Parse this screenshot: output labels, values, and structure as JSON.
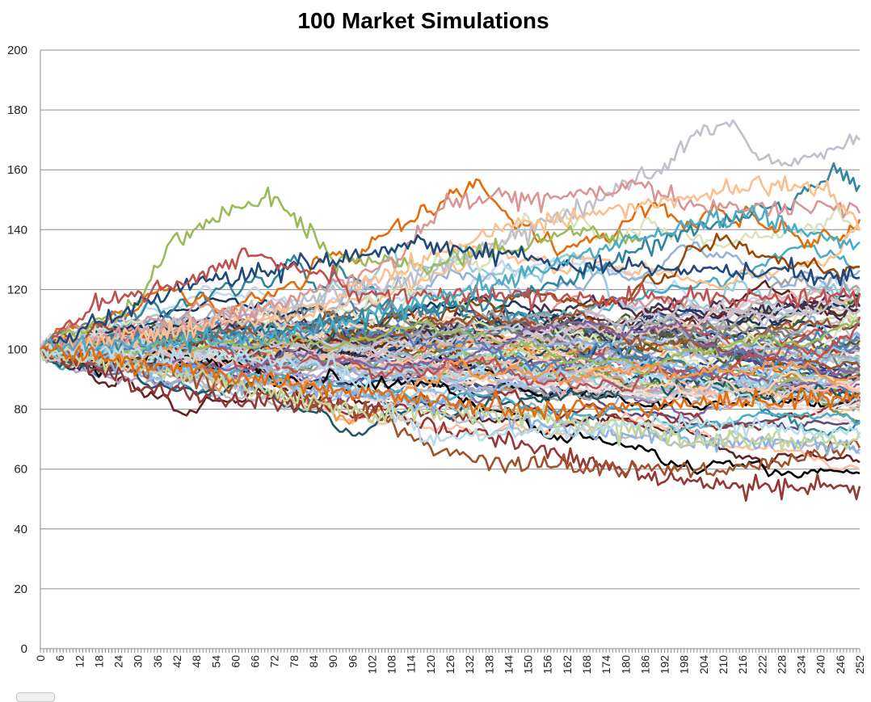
{
  "chart_data": {
    "type": "line",
    "title": "100 Market Simulations",
    "xlabel": "",
    "ylabel": "",
    "x_range": [
      0,
      252
    ],
    "ylim": [
      0,
      200
    ],
    "y_ticks": [
      "0",
      "20",
      "40",
      "60",
      "80",
      "100",
      "120",
      "140",
      "160",
      "180",
      "200"
    ],
    "x_ticks": [
      "0",
      "6",
      "12",
      "18",
      "24",
      "30",
      "36",
      "42",
      "48",
      "54",
      "60",
      "66",
      "72",
      "78",
      "84",
      "90",
      "96",
      "102",
      "108",
      "114",
      "120",
      "126",
      "132",
      "138",
      "144",
      "150",
      "156",
      "162",
      "168",
      "174",
      "180",
      "186",
      "192",
      "198",
      "204",
      "210",
      "216",
      "222",
      "228",
      "234",
      "240",
      "246",
      "252"
    ],
    "grid": "horizontal",
    "legend": "none",
    "series_count": 100,
    "series_start_value": 100,
    "highlighted_paths": [
      {
        "color": "#c0c0cc",
        "points": [
          [
            0,
            100
          ],
          [
            60,
            112
          ],
          [
            120,
            125
          ],
          [
            170,
            150
          ],
          [
            190,
            160
          ],
          [
            200,
            170
          ],
          [
            213,
            177
          ],
          [
            220,
            165
          ],
          [
            228,
            163
          ],
          [
            240,
            166
          ],
          [
            252,
            169
          ]
        ]
      },
      {
        "color": "#9bbb59",
        "points": [
          [
            0,
            100
          ],
          [
            30,
            115
          ],
          [
            40,
            135
          ],
          [
            55,
            145
          ],
          [
            72,
            152
          ],
          [
            80,
            143
          ],
          [
            90,
            130
          ],
          [
            120,
            128
          ],
          [
            150,
            135
          ],
          [
            168,
            140
          ],
          [
            185,
            135
          ]
        ]
      },
      {
        "color": "#31859c",
        "points": [
          [
            0,
            100
          ],
          [
            80,
            108
          ],
          [
            150,
            118
          ],
          [
            200,
            140
          ],
          [
            230,
            148
          ],
          [
            245,
            160
          ],
          [
            252,
            155
          ]
        ]
      },
      {
        "color": "#953735",
        "points": [
          [
            0,
            100
          ],
          [
            30,
            88
          ],
          [
            60,
            82
          ],
          [
            100,
            80
          ],
          [
            130,
            72
          ],
          [
            160,
            65
          ],
          [
            176,
            60
          ],
          [
            185,
            57
          ],
          [
            220,
            54
          ],
          [
            252,
            54
          ]
        ]
      },
      {
        "color": "#a0522d",
        "points": [
          [
            0,
            100
          ],
          [
            50,
            90
          ],
          [
            100,
            80
          ],
          [
            120,
            67
          ],
          [
            140,
            62
          ],
          [
            165,
            60
          ],
          [
            210,
            60
          ],
          [
            240,
            65
          ],
          [
            252,
            67
          ]
        ]
      },
      {
        "color": "#d99694",
        "points": [
          [
            0,
            100
          ],
          [
            60,
            110
          ],
          [
            110,
            130
          ],
          [
            125,
            148
          ],
          [
            145,
            151
          ],
          [
            170,
            152
          ],
          [
            185,
            155
          ],
          [
            200,
            148
          ],
          [
            252,
            147
          ]
        ]
      },
      {
        "color": "#fac090",
        "points": [
          [
            0,
            100
          ],
          [
            80,
            112
          ],
          [
            140,
            140
          ],
          [
            170,
            145
          ],
          [
            210,
            153
          ],
          [
            240,
            155
          ],
          [
            252,
            143
          ]
        ]
      },
      {
        "color": "#1f497d",
        "points": [
          [
            0,
            100
          ],
          [
            40,
            120
          ],
          [
            70,
            126
          ],
          [
            100,
            132
          ],
          [
            120,
            136
          ],
          [
            160,
            128
          ],
          [
            252,
            125
          ]
        ]
      },
      {
        "color": "#c0504d",
        "points": [
          [
            0,
            100
          ],
          [
            20,
            117
          ],
          [
            40,
            120
          ],
          [
            66,
            132
          ],
          [
            100,
            118
          ],
          [
            252,
            117
          ]
        ]
      },
      {
        "color": "#8db3e2",
        "points": [
          [
            0,
            100
          ],
          [
            60,
            90
          ],
          [
            120,
            82
          ],
          [
            170,
            72
          ],
          [
            210,
            70
          ],
          [
            252,
            68
          ]
        ]
      },
      {
        "color": "#4bacc6",
        "points": [
          [
            0,
            100
          ],
          [
            80,
            105
          ],
          [
            150,
            125
          ],
          [
            190,
            140
          ],
          [
            220,
            145
          ],
          [
            252,
            135
          ]
        ]
      },
      {
        "color": "#c3d69b",
        "points": [
          [
            0,
            100
          ],
          [
            60,
            88
          ],
          [
            100,
            78
          ],
          [
            150,
            78
          ],
          [
            200,
            70
          ],
          [
            252,
            70
          ]
        ]
      },
      {
        "color": "#b7dee8",
        "points": [
          [
            0,
            100
          ],
          [
            90,
            95
          ],
          [
            120,
            70
          ],
          [
            160,
            73
          ],
          [
            200,
            75
          ],
          [
            252,
            72
          ]
        ]
      },
      {
        "color": "#e46c0a",
        "points": [
          [
            0,
            100
          ],
          [
            100,
            85
          ],
          [
            150,
            80
          ],
          [
            200,
            82
          ],
          [
            252,
            84
          ]
        ]
      }
    ]
  }
}
